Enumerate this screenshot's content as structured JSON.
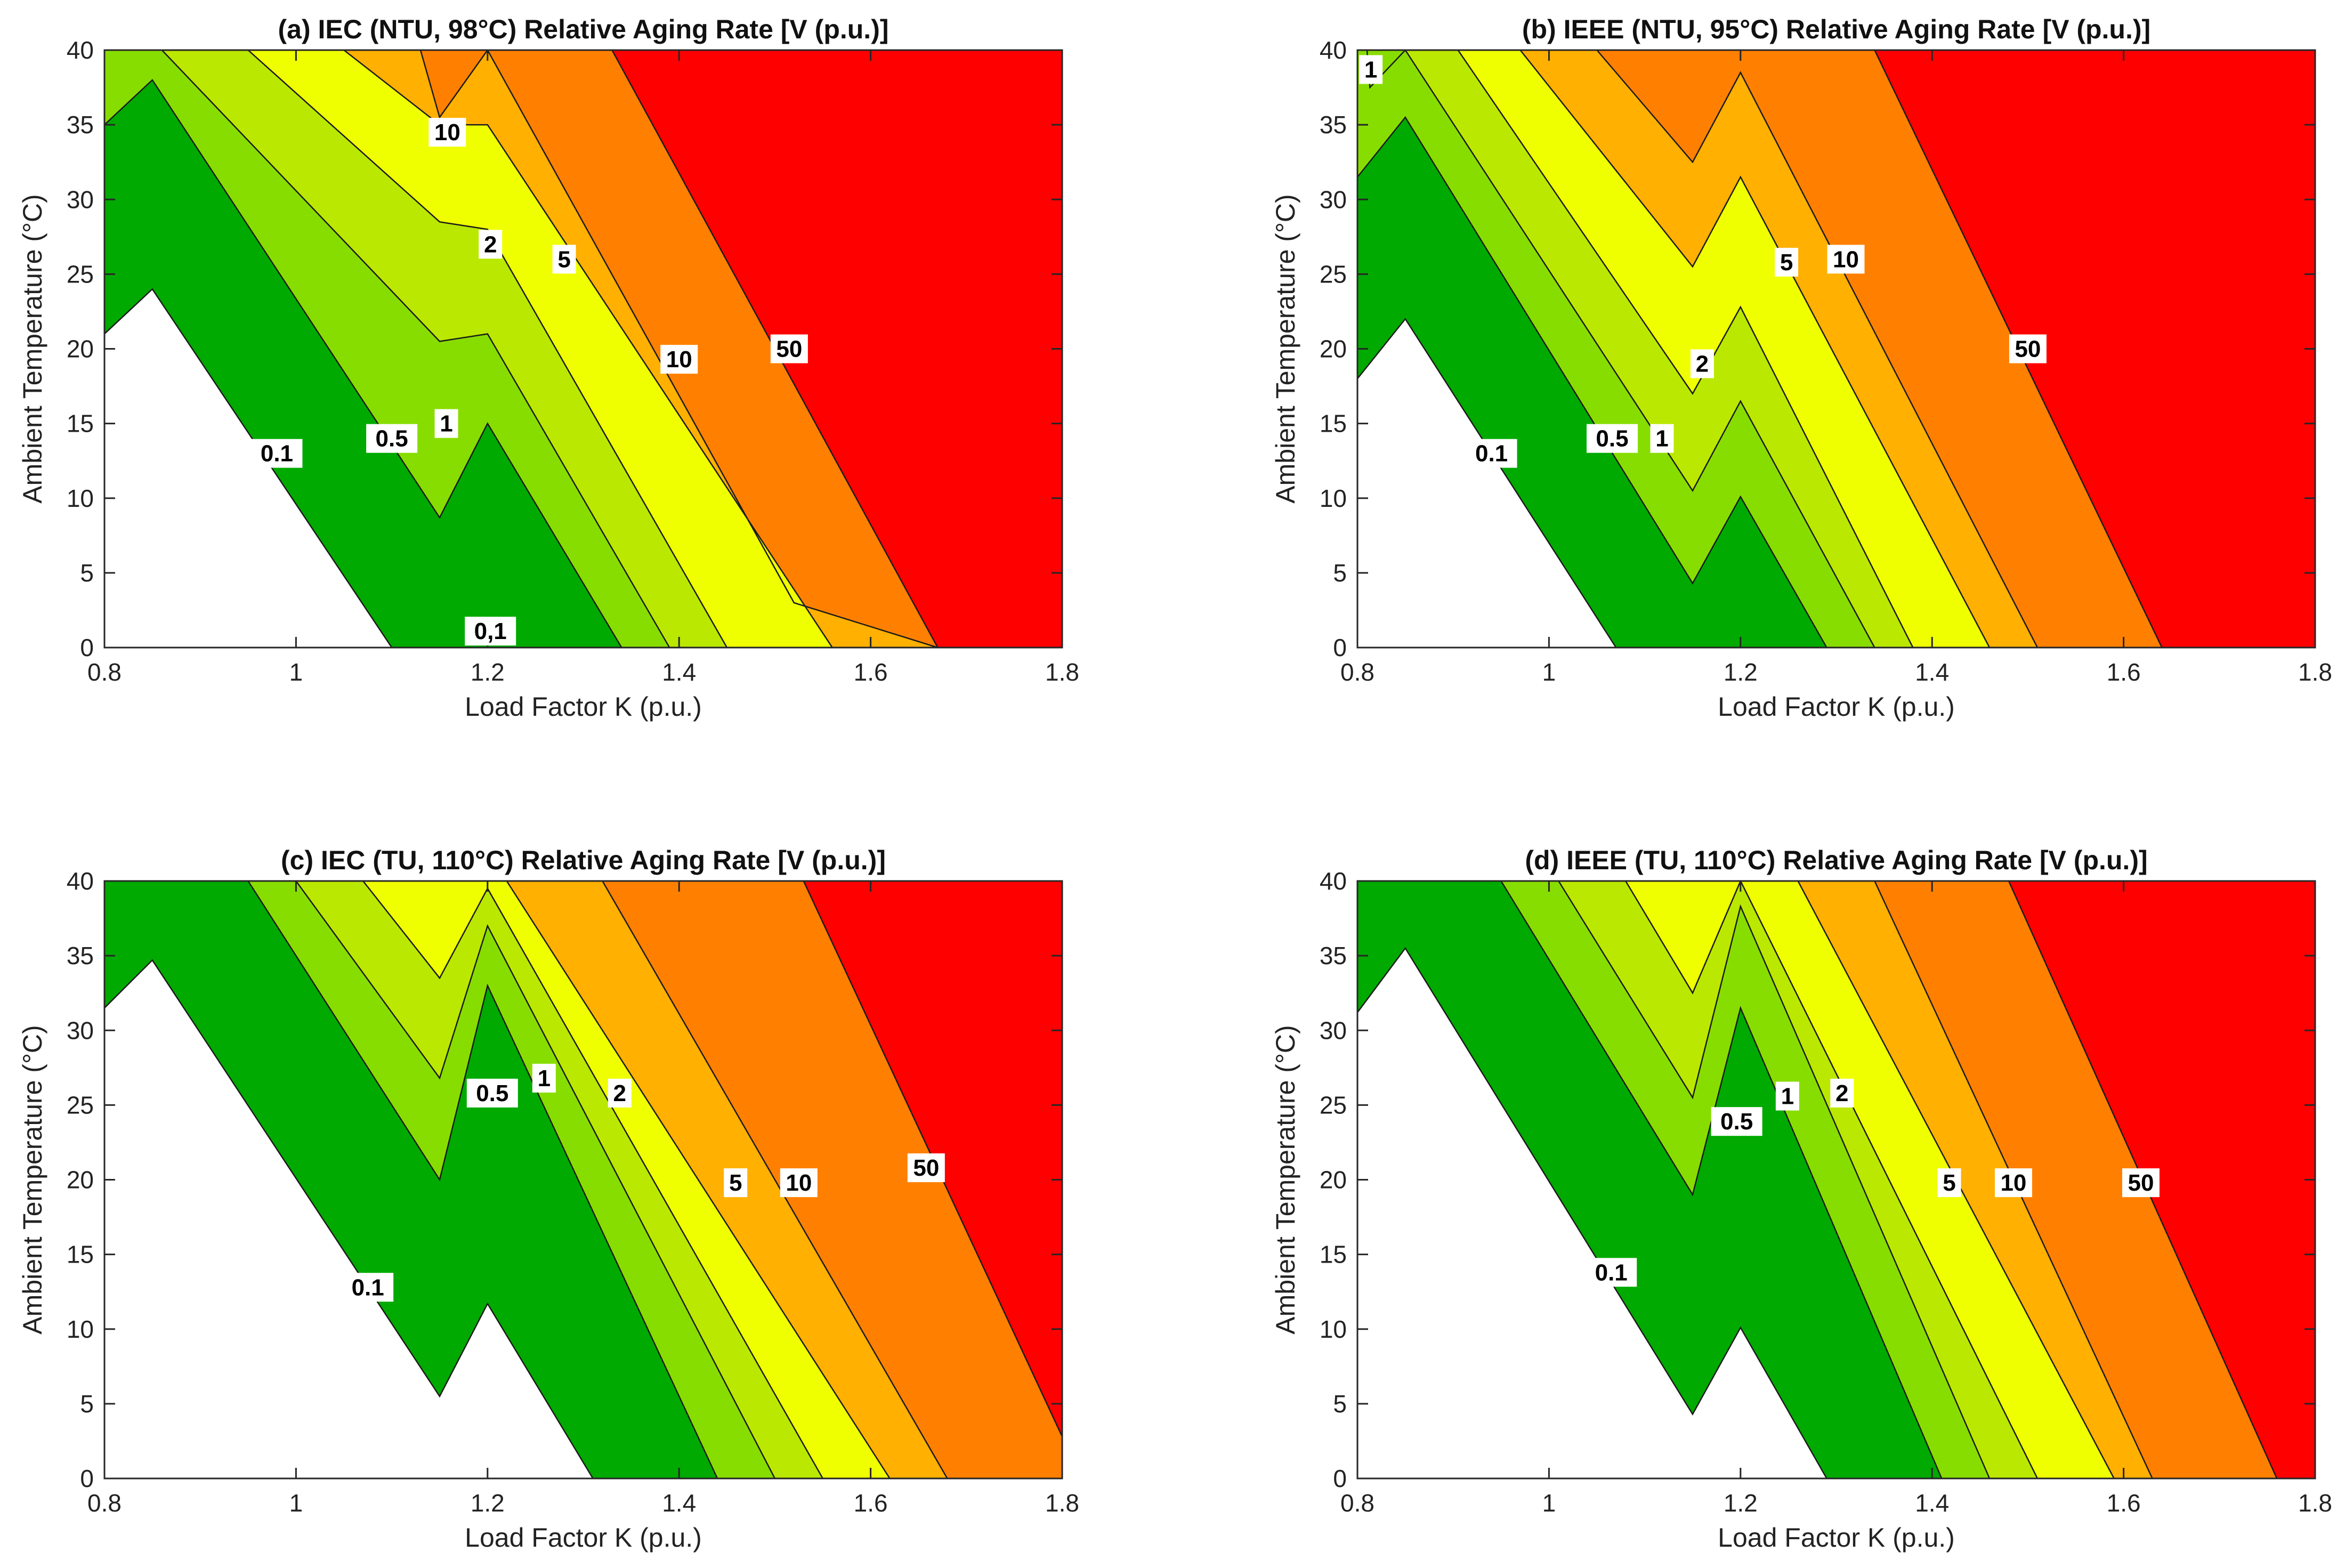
{
  "chart_data": [
    {
      "type": "filled-contour",
      "title": "(a)  IEC  (NTU,  98°C)  Relative  Aging  Rate  [V  (p.u.)]",
      "xlabel": "Load Factor K (p.u.)",
      "ylabel": "Ambient Temperature  (°C)",
      "xlim": [
        0.8,
        1.8
      ],
      "ylim": [
        0,
        40
      ],
      "xticks": [
        "0.8",
        "1",
        "1.2",
        "1.4",
        "1.6",
        "1.8"
      ],
      "yticks": [
        "0",
        "5",
        "10",
        "15",
        "20",
        "25",
        "30",
        "35",
        "40"
      ],
      "levels": [
        0.1,
        0.5,
        1,
        2,
        5,
        10,
        50
      ],
      "colors": [
        "#ffffff",
        "#00aa00",
        "#88dd00",
        "#bbe800",
        "#f0ff00",
        "#ffb000",
        "#ff8000",
        "#ff0000"
      ],
      "contours": [
        {
          "level": 0.1,
          "line": [
            [
              0.8,
              21
            ],
            [
              0.85,
              24
            ],
            [
              1.1,
              0
            ]
          ]
        },
        {
          "level": 0.5,
          "line": [
            [
              0.8,
              35
            ],
            [
              0.85,
              38
            ],
            [
              1.15,
              8.7
            ],
            [
              1.2,
              15
            ],
            [
              1.34,
              0
            ]
          ]
        },
        {
          "level": 1,
          "line": [
            [
              0.86,
              40
            ],
            [
              1.15,
              20.5
            ],
            [
              1.2,
              21
            ],
            [
              1.39,
              0
            ]
          ]
        },
        {
          "level": 2,
          "line": [
            [
              0.95,
              40
            ],
            [
              1.15,
              28.5
            ],
            [
              1.2,
              28
            ],
            [
              1.45,
              0
            ]
          ]
        },
        {
          "level": 5,
          "line": [
            [
              1.05,
              40
            ],
            [
              1.15,
              35
            ],
            [
              1.2,
              35
            ],
            [
              1.56,
              0
            ]
          ]
        },
        {
          "level": 10,
          "line": [
            [
              1.13,
              40
            ],
            [
              1.15,
              35.5
            ],
            [
              1.2,
              40
            ],
            [
              1.52,
              3
            ],
            [
              1.67,
              0
            ]
          ]
        },
        {
          "level": 50,
          "line": [
            [
              1.33,
              40
            ],
            [
              1.67,
              0
            ]
          ]
        }
      ],
      "annotations": [
        {
          "text": "0.1",
          "x": 0.98,
          "y": 13
        },
        {
          "text": "0.5",
          "x": 1.1,
          "y": 14
        },
        {
          "text": "1",
          "x": 1.157,
          "y": 15
        },
        {
          "text": "2",
          "x": 1.203,
          "y": 27
        },
        {
          "text": "5",
          "x": 1.28,
          "y": 26
        },
        {
          "text": "10",
          "x": 1.158,
          "y": 34.5
        },
        {
          "text": "10",
          "x": 1.4,
          "y": 19.3
        },
        {
          "text": "50",
          "x": 1.515,
          "y": 20
        },
        {
          "text": "0,1",
          "x": 1.203,
          "y": 1.1
        }
      ]
    },
    {
      "type": "filled-contour",
      "title": "(b)  IEEE  (NTU,  95°C)  Relative  Aging  Rate  [V  (p.u.)]",
      "xlabel": "Load Factor K (p.u.)",
      "ylabel": "Ambient Temperature  (°C)",
      "xlim": [
        0.8,
        1.8
      ],
      "ylim": [
        0,
        40
      ],
      "xticks": [
        "0.8",
        "1",
        "1.2",
        "1.4",
        "1.6",
        "1.8"
      ],
      "yticks": [
        "0",
        "5",
        "10",
        "15",
        "20",
        "25",
        "30",
        "35",
        "40"
      ],
      "levels": [
        0.1,
        0.5,
        1,
        2,
        5,
        10,
        50
      ],
      "colors": [
        "#ffffff",
        "#00aa00",
        "#88dd00",
        "#bbe800",
        "#f0ff00",
        "#ffb000",
        "#ff8000",
        "#ff0000"
      ],
      "contours": [
        {
          "level": 0.1,
          "line": [
            [
              0.8,
              18
            ],
            [
              0.85,
              22
            ],
            [
              1.07,
              0
            ]
          ]
        },
        {
          "level": 0.5,
          "line": [
            [
              0.8,
              31.5
            ],
            [
              0.85,
              35.5
            ],
            [
              1.15,
              4.3
            ],
            [
              1.2,
              10.1
            ],
            [
              1.29,
              0
            ]
          ]
        },
        {
          "level": 1,
          "line": [
            [
              0.85,
              40
            ],
            [
              1.15,
              10.5
            ],
            [
              1.2,
              16.5
            ],
            [
              1.34,
              0
            ]
          ]
        },
        {
          "level": 2,
          "line": [
            [
              0.81,
              40
            ],
            [
              0.813,
              37.5
            ],
            [
              0.85,
              40
            ],
            [
              0.905,
              40
            ],
            [
              1.15,
              17
            ],
            [
              1.2,
              22.8
            ],
            [
              1.38,
              0
            ]
          ]
        },
        {
          "level": 5,
          "line": [
            [
              0.97,
              40
            ],
            [
              1.15,
              25.5
            ],
            [
              1.2,
              31.5
            ],
            [
              1.46,
              0
            ]
          ]
        },
        {
          "level": 10,
          "line": [
            [
              1.05,
              40
            ],
            [
              1.15,
              32.5
            ],
            [
              1.2,
              38.5
            ],
            [
              1.51,
              0
            ]
          ]
        },
        {
          "level": 50,
          "line": [
            [
              1.34,
              40
            ],
            [
              1.64,
              0
            ]
          ]
        }
      ],
      "annotations": [
        {
          "text": "1",
          "x": 0.814,
          "y": 38.7
        },
        {
          "text": "0.1",
          "x": 0.94,
          "y": 13
        },
        {
          "text": "0.5",
          "x": 1.066,
          "y": 14
        },
        {
          "text": "1",
          "x": 1.118,
          "y": 14
        },
        {
          "text": "2",
          "x": 1.16,
          "y": 19
        },
        {
          "text": "5",
          "x": 1.248,
          "y": 25.8
        },
        {
          "text": "10",
          "x": 1.31,
          "y": 26
        },
        {
          "text": "50",
          "x": 1.5,
          "y": 20
        }
      ]
    },
    {
      "type": "filled-contour",
      "title": "(c)  IEC  (TU,  110°C)  Relative  Aging  Rate  [V  (p.u.)]",
      "xlabel": "Load Factor K (p.u.)",
      "ylabel": "Ambient Temperature  (°C)",
      "xlim": [
        0.8,
        1.8
      ],
      "ylim": [
        0,
        40
      ],
      "xticks": [
        "0.8",
        "1",
        "1.2",
        "1.4",
        "1.6",
        "1.8"
      ],
      "yticks": [
        "0",
        "5",
        "10",
        "15",
        "20",
        "25",
        "30",
        "35",
        "40"
      ],
      "levels": [
        0.1,
        0.5,
        1,
        2,
        5,
        10,
        50
      ],
      "colors": [
        "#ffffff",
        "#00aa00",
        "#88dd00",
        "#bbe800",
        "#f0ff00",
        "#ffb000",
        "#ff8000",
        "#ff0000"
      ],
      "contours": [
        {
          "level": 0.1,
          "line": [
            [
              0.8,
              31.5
            ],
            [
              0.85,
              34.7
            ],
            [
              1.15,
              5.5
            ],
            [
              1.2,
              11.7
            ],
            [
              1.31,
              0
            ]
          ]
        },
        {
          "level": 0.5,
          "line": [
            [
              0.95,
              40
            ],
            [
              1.15,
              20
            ],
            [
              1.2,
              33
            ],
            [
              1.44,
              0
            ]
          ]
        },
        {
          "level": 1,
          "line": [
            [
              1.0,
              40
            ],
            [
              1.15,
              26.8
            ],
            [
              1.2,
              37
            ],
            [
              1.5,
              0
            ]
          ]
        },
        {
          "level": 2,
          "line": [
            [
              1.07,
              40
            ],
            [
              1.15,
              33.5
            ],
            [
              1.2,
              39.5
            ],
            [
              1.55,
              0
            ]
          ]
        },
        {
          "level": 5,
          "line": [
            [
              1.22,
              40
            ],
            [
              1.62,
              0
            ]
          ]
        },
        {
          "level": 10,
          "line": [
            [
              1.32,
              40
            ],
            [
              1.68,
              0
            ]
          ]
        },
        {
          "level": 50,
          "line": [
            [
              1.53,
              40
            ],
            [
              1.8,
              2.8
            ]
          ]
        }
      ],
      "annotations": [
        {
          "text": "0.1",
          "x": 1.075,
          "y": 12.8
        },
        {
          "text": "0.5",
          "x": 1.205,
          "y": 25.8
        },
        {
          "text": "1",
          "x": 1.259,
          "y": 26.8
        },
        {
          "text": "2",
          "x": 1.338,
          "y": 25.8
        },
        {
          "text": "5",
          "x": 1.459,
          "y": 19.8
        },
        {
          "text": "10",
          "x": 1.525,
          "y": 19.8
        },
        {
          "text": "50",
          "x": 1.658,
          "y": 20.8
        }
      ]
    },
    {
      "type": "filled-contour",
      "title": "(d)  IEEE  (TU,  110°C)  Relative  Aging  Rate  [V  (p.u.)]",
      "xlabel": "Load Factor K (p.u.)",
      "ylabel": "Ambient Temperature  (°C)",
      "xlim": [
        0.8,
        1.8
      ],
      "ylim": [
        0,
        40
      ],
      "xticks": [
        "0.8",
        "1",
        "1.2",
        "1.4",
        "1.6",
        "1.8"
      ],
      "yticks": [
        "0",
        "5",
        "10",
        "15",
        "20",
        "25",
        "30",
        "35",
        "40"
      ],
      "levels": [
        0.1,
        0.5,
        1,
        2,
        5,
        10,
        50
      ],
      "colors": [
        "#ffffff",
        "#00aa00",
        "#88dd00",
        "#bbe800",
        "#f0ff00",
        "#ffb000",
        "#ff8000",
        "#ff0000"
      ],
      "contours": [
        {
          "level": 0.1,
          "line": [
            [
              0.8,
              31.2
            ],
            [
              0.85,
              35.5
            ],
            [
              1.15,
              4.3
            ],
            [
              1.2,
              10.1
            ],
            [
              1.29,
              0
            ]
          ]
        },
        {
          "level": 0.5,
          "line": [
            [
              0.95,
              40
            ],
            [
              1.15,
              19
            ],
            [
              1.2,
              31.5
            ],
            [
              1.41,
              0
            ]
          ]
        },
        {
          "level": 1,
          "line": [
            [
              1.01,
              40
            ],
            [
              1.15,
              25.5
            ],
            [
              1.2,
              38.3
            ],
            [
              1.46,
              0
            ]
          ]
        },
        {
          "level": 2,
          "line": [
            [
              1.08,
              40
            ],
            [
              1.15,
              32.5
            ],
            [
              1.2,
              40
            ],
            [
              1.51,
              0
            ]
          ]
        },
        {
          "level": 5,
          "line": [
            [
              1.26,
              40
            ],
            [
              1.59,
              0
            ]
          ]
        },
        {
          "level": 10,
          "line": [
            [
              1.34,
              40
            ],
            [
              1.63,
              0
            ]
          ]
        },
        {
          "level": 50,
          "line": [
            [
              1.48,
              40
            ],
            [
              1.76,
              0
            ]
          ]
        }
      ],
      "annotations": [
        {
          "text": "0.1",
          "x": 1.065,
          "y": 13.8
        },
        {
          "text": "0.5",
          "x": 1.196,
          "y": 23.9
        },
        {
          "text": "1",
          "x": 1.249,
          "y": 25.6
        },
        {
          "text": "2",
          "x": 1.306,
          "y": 25.8
        },
        {
          "text": "5",
          "x": 1.418,
          "y": 19.8
        },
        {
          "text": "10",
          "x": 1.485,
          "y": 19.8
        },
        {
          "text": "50",
          "x": 1.618,
          "y": 19.8
        }
      ]
    }
  ]
}
